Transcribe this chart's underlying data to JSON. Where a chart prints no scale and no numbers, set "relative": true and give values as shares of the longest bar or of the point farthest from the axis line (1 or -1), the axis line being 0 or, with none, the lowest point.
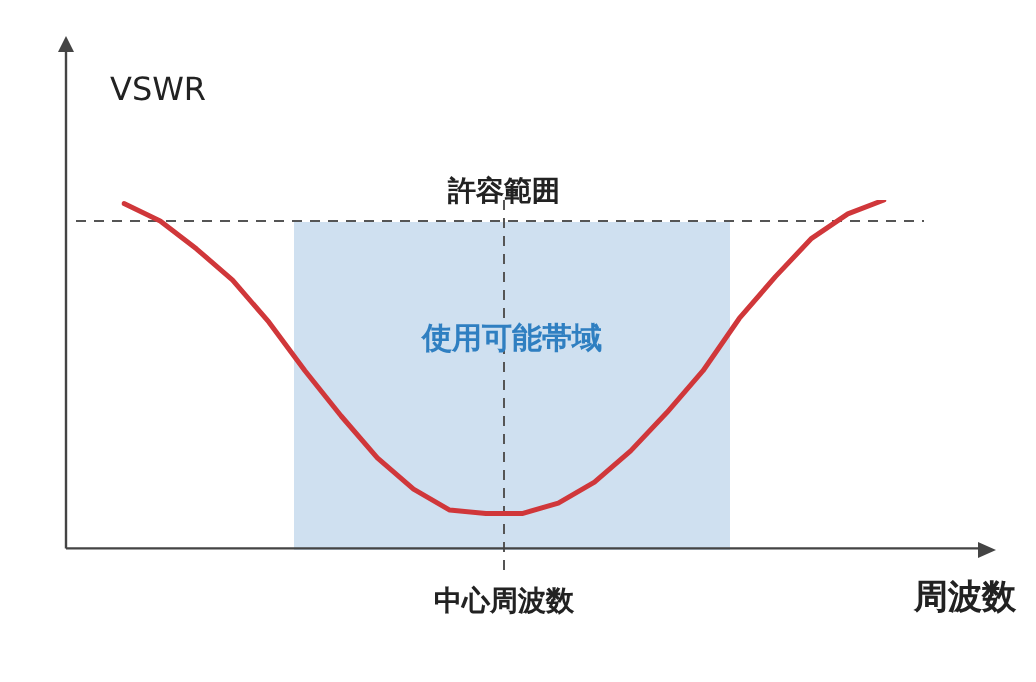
{
  "chart_data": {
    "type": "line",
    "relative": true,
    "xlabel": "周波数",
    "ylabel": "VSWR",
    "grid": false,
    "legend": false,
    "marker": "none",
    "line_style": "solid",
    "categories": [
      null,
      null,
      null,
      null,
      null,
      null,
      null,
      null,
      null,
      null,
      null,
      null,
      null,
      null,
      null,
      null,
      null,
      null,
      null,
      null,
      null,
      null
    ],
    "series": [
      {
        "color": "#d0373a",
        "values": [
          0.99,
          0.94,
          0.86,
          0.77,
          0.65,
          0.51,
          0.38,
          0.26,
          0.17,
          0.11,
          0.1,
          0.1,
          0.13,
          0.19,
          0.28,
          0.39,
          0.51,
          0.66,
          0.78,
          0.89,
          0.96,
          1.0
        ]
      }
    ],
    "ref_lines": [
      {
        "axis": "y",
        "value": 0.94,
        "label": "許容範囲",
        "color": "#555555",
        "line_style": "dashed"
      },
      {
        "axis": "x",
        "label": "中心周波数",
        "color": "#555555",
        "line_style": "dashed"
      }
    ],
    "annotations": [
      "使用可能帯域"
    ]
  }
}
